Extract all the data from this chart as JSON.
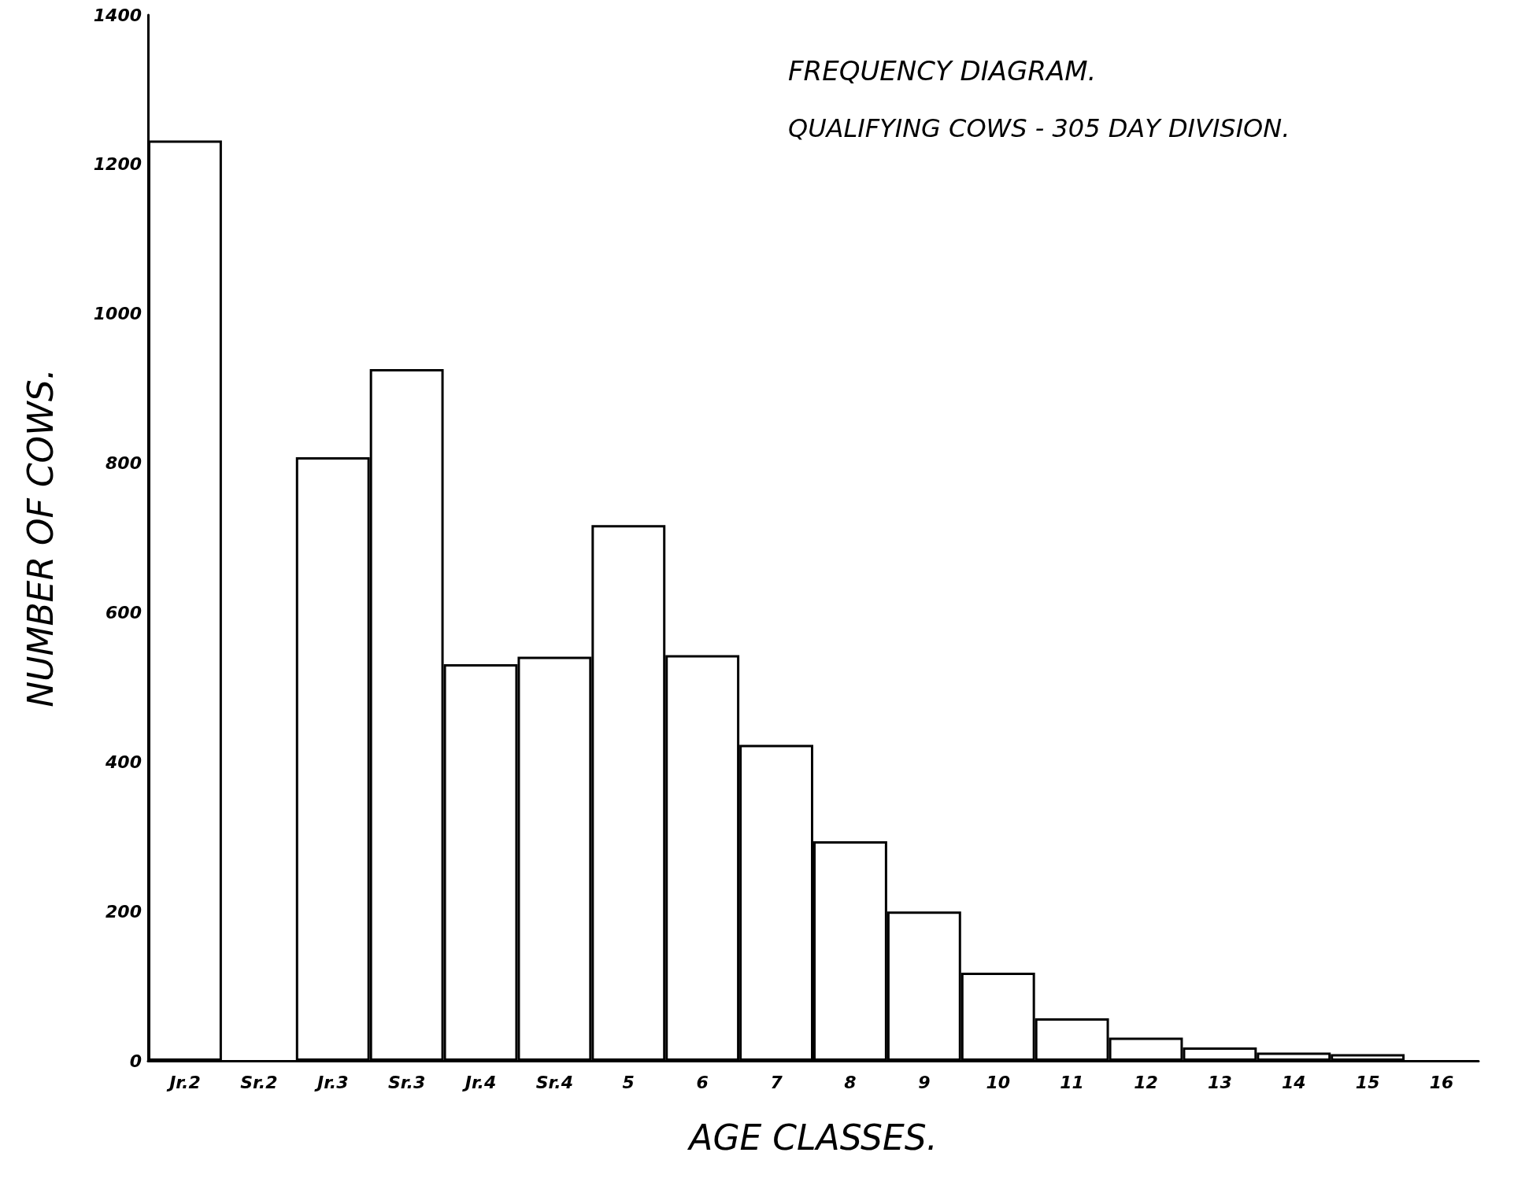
{
  "chart_data": {
    "type": "bar",
    "title": "FREQUENCY DIAGRAM.",
    "subtitle": "QUALIFYING COWS - 305 DAY DIVISION.",
    "xlabel": "AGE CLASSES.",
    "ylabel": "NUMBER OF COWS.",
    "categories": [
      "Jr.2",
      "Sr.2",
      "Jr.3",
      "Sr.3",
      "Jr.4",
      "Sr.4",
      "5",
      "6",
      "7",
      "8",
      "9",
      "10",
      "11",
      "12",
      "13",
      "14",
      "15",
      "16"
    ],
    "values": [
      1232,
      null,
      808,
      926,
      531,
      541,
      717,
      543,
      423,
      294,
      200,
      118,
      57,
      31,
      18,
      11,
      9,
      null
    ],
    "color": "#ffffff",
    "ylim": [
      0,
      1400
    ],
    "yticks": [
      0,
      200,
      400,
      600,
      800,
      1000,
      1200,
      1400
    ],
    "grid": false
  }
}
